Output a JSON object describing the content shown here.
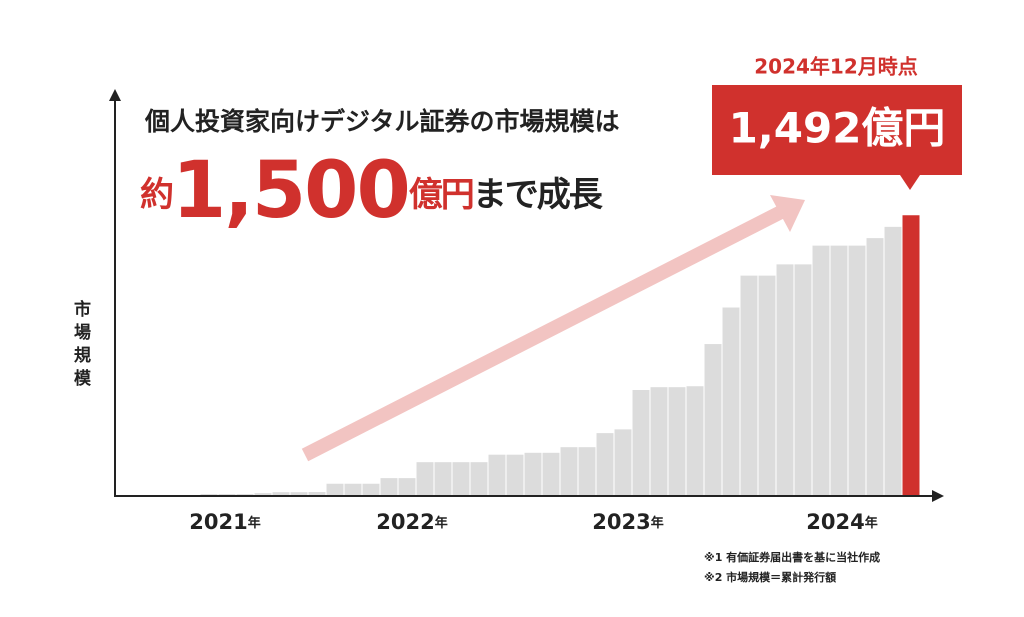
{
  "chart_data": {
    "type": "bar",
    "title": "個人投資家向けデジタル証券の市場規模は",
    "headline": {
      "prefix": "約",
      "value": "1,500",
      "unit": "億円",
      "suffix": "まで成長"
    },
    "y_label": "市場規模",
    "callout_date": "2024年12月時点",
    "x_labels": [
      {
        "year": "2021",
        "unit": "年"
      },
      {
        "year": "2022",
        "unit": "年"
      },
      {
        "year": "2023",
        "unit": "年"
      },
      {
        "year": "2024",
        "unit": "年"
      }
    ],
    "categories": [
      null,
      null,
      null,
      null,
      null,
      null,
      null,
      null,
      null,
      null,
      null,
      null,
      null,
      null,
      null,
      null,
      null,
      null,
      null,
      null,
      null,
      null,
      null,
      null,
      null,
      null,
      null,
      null,
      null,
      null,
      null,
      null,
      null,
      null,
      null,
      null,
      null,
      null,
      null,
      null
    ],
    "values": [
      5,
      5,
      5,
      10,
      15,
      15,
      16,
      60,
      60,
      60,
      90,
      90,
      175,
      175,
      175,
      175,
      215,
      215,
      225,
      225,
      255,
      255,
      330,
      350,
      560,
      575,
      575,
      580,
      805,
      1000,
      1170,
      1170,
      1230,
      1230,
      1330,
      1330,
      1330,
      1370,
      1430,
      1492
    ],
    "value_labels": [
      null,
      null,
      null,
      null,
      null,
      null,
      null,
      null,
      null,
      null,
      null,
      null,
      null,
      null,
      null,
      null,
      null,
      null,
      null,
      null,
      null,
      null,
      null,
      null,
      null,
      null,
      null,
      null,
      null,
      null,
      null,
      null,
      null,
      null,
      null,
      null,
      null,
      null,
      null,
      "1,492億円"
    ],
    "colors": {
      "bar": "#dcdcdc",
      "highlight": "#d0312d"
    },
    "ylim": [
      0,
      1600
    ],
    "footnotes": [
      "※1 有価証券届出書を基に当社作成",
      "※2 市場規模＝累計発行額"
    ]
  }
}
